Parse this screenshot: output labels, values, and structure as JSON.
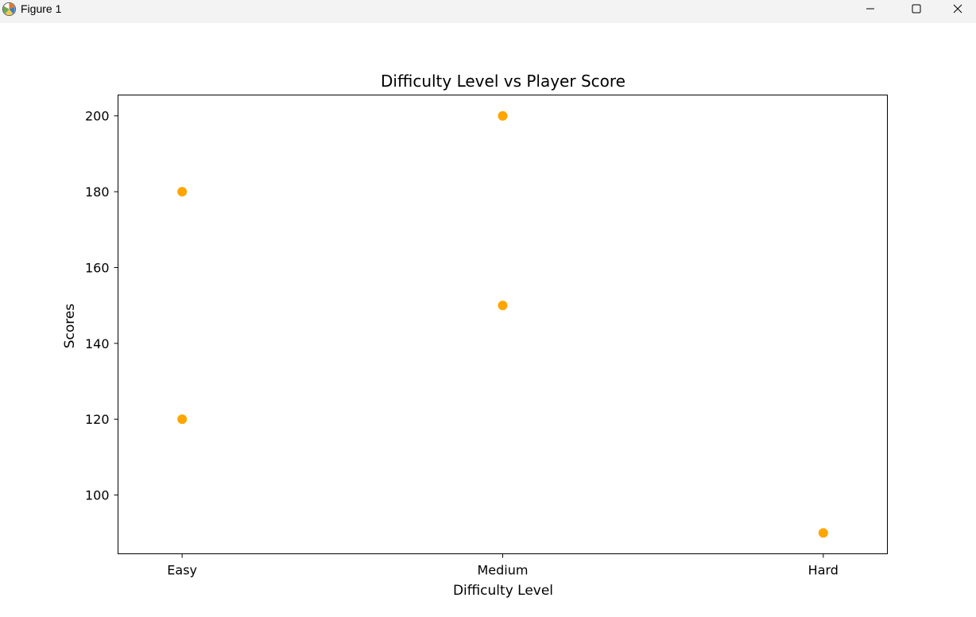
{
  "window": {
    "title": "Figure 1",
    "icon": "matplotlib-icon",
    "controls": [
      "minimize-icon",
      "maximize-icon",
      "close-icon"
    ]
  },
  "chart_data": {
    "type": "scatter",
    "title": "Difficulty Level vs Player Score",
    "xlabel": "Difficulty Level",
    "ylabel": "Scores",
    "categories": [
      "Easy",
      "Medium",
      "Hard"
    ],
    "points": [
      {
        "x": "Easy",
        "y": 120
      },
      {
        "x": "Easy",
        "y": 180
      },
      {
        "x": "Medium",
        "y": 150
      },
      {
        "x": "Medium",
        "y": 200
      },
      {
        "x": "Hard",
        "y": 90
      }
    ],
    "yticks": [
      100,
      120,
      140,
      160,
      180,
      200
    ],
    "ylim": [
      84.5,
      205.5
    ],
    "grid": false,
    "marker_color": "#ffa500"
  }
}
